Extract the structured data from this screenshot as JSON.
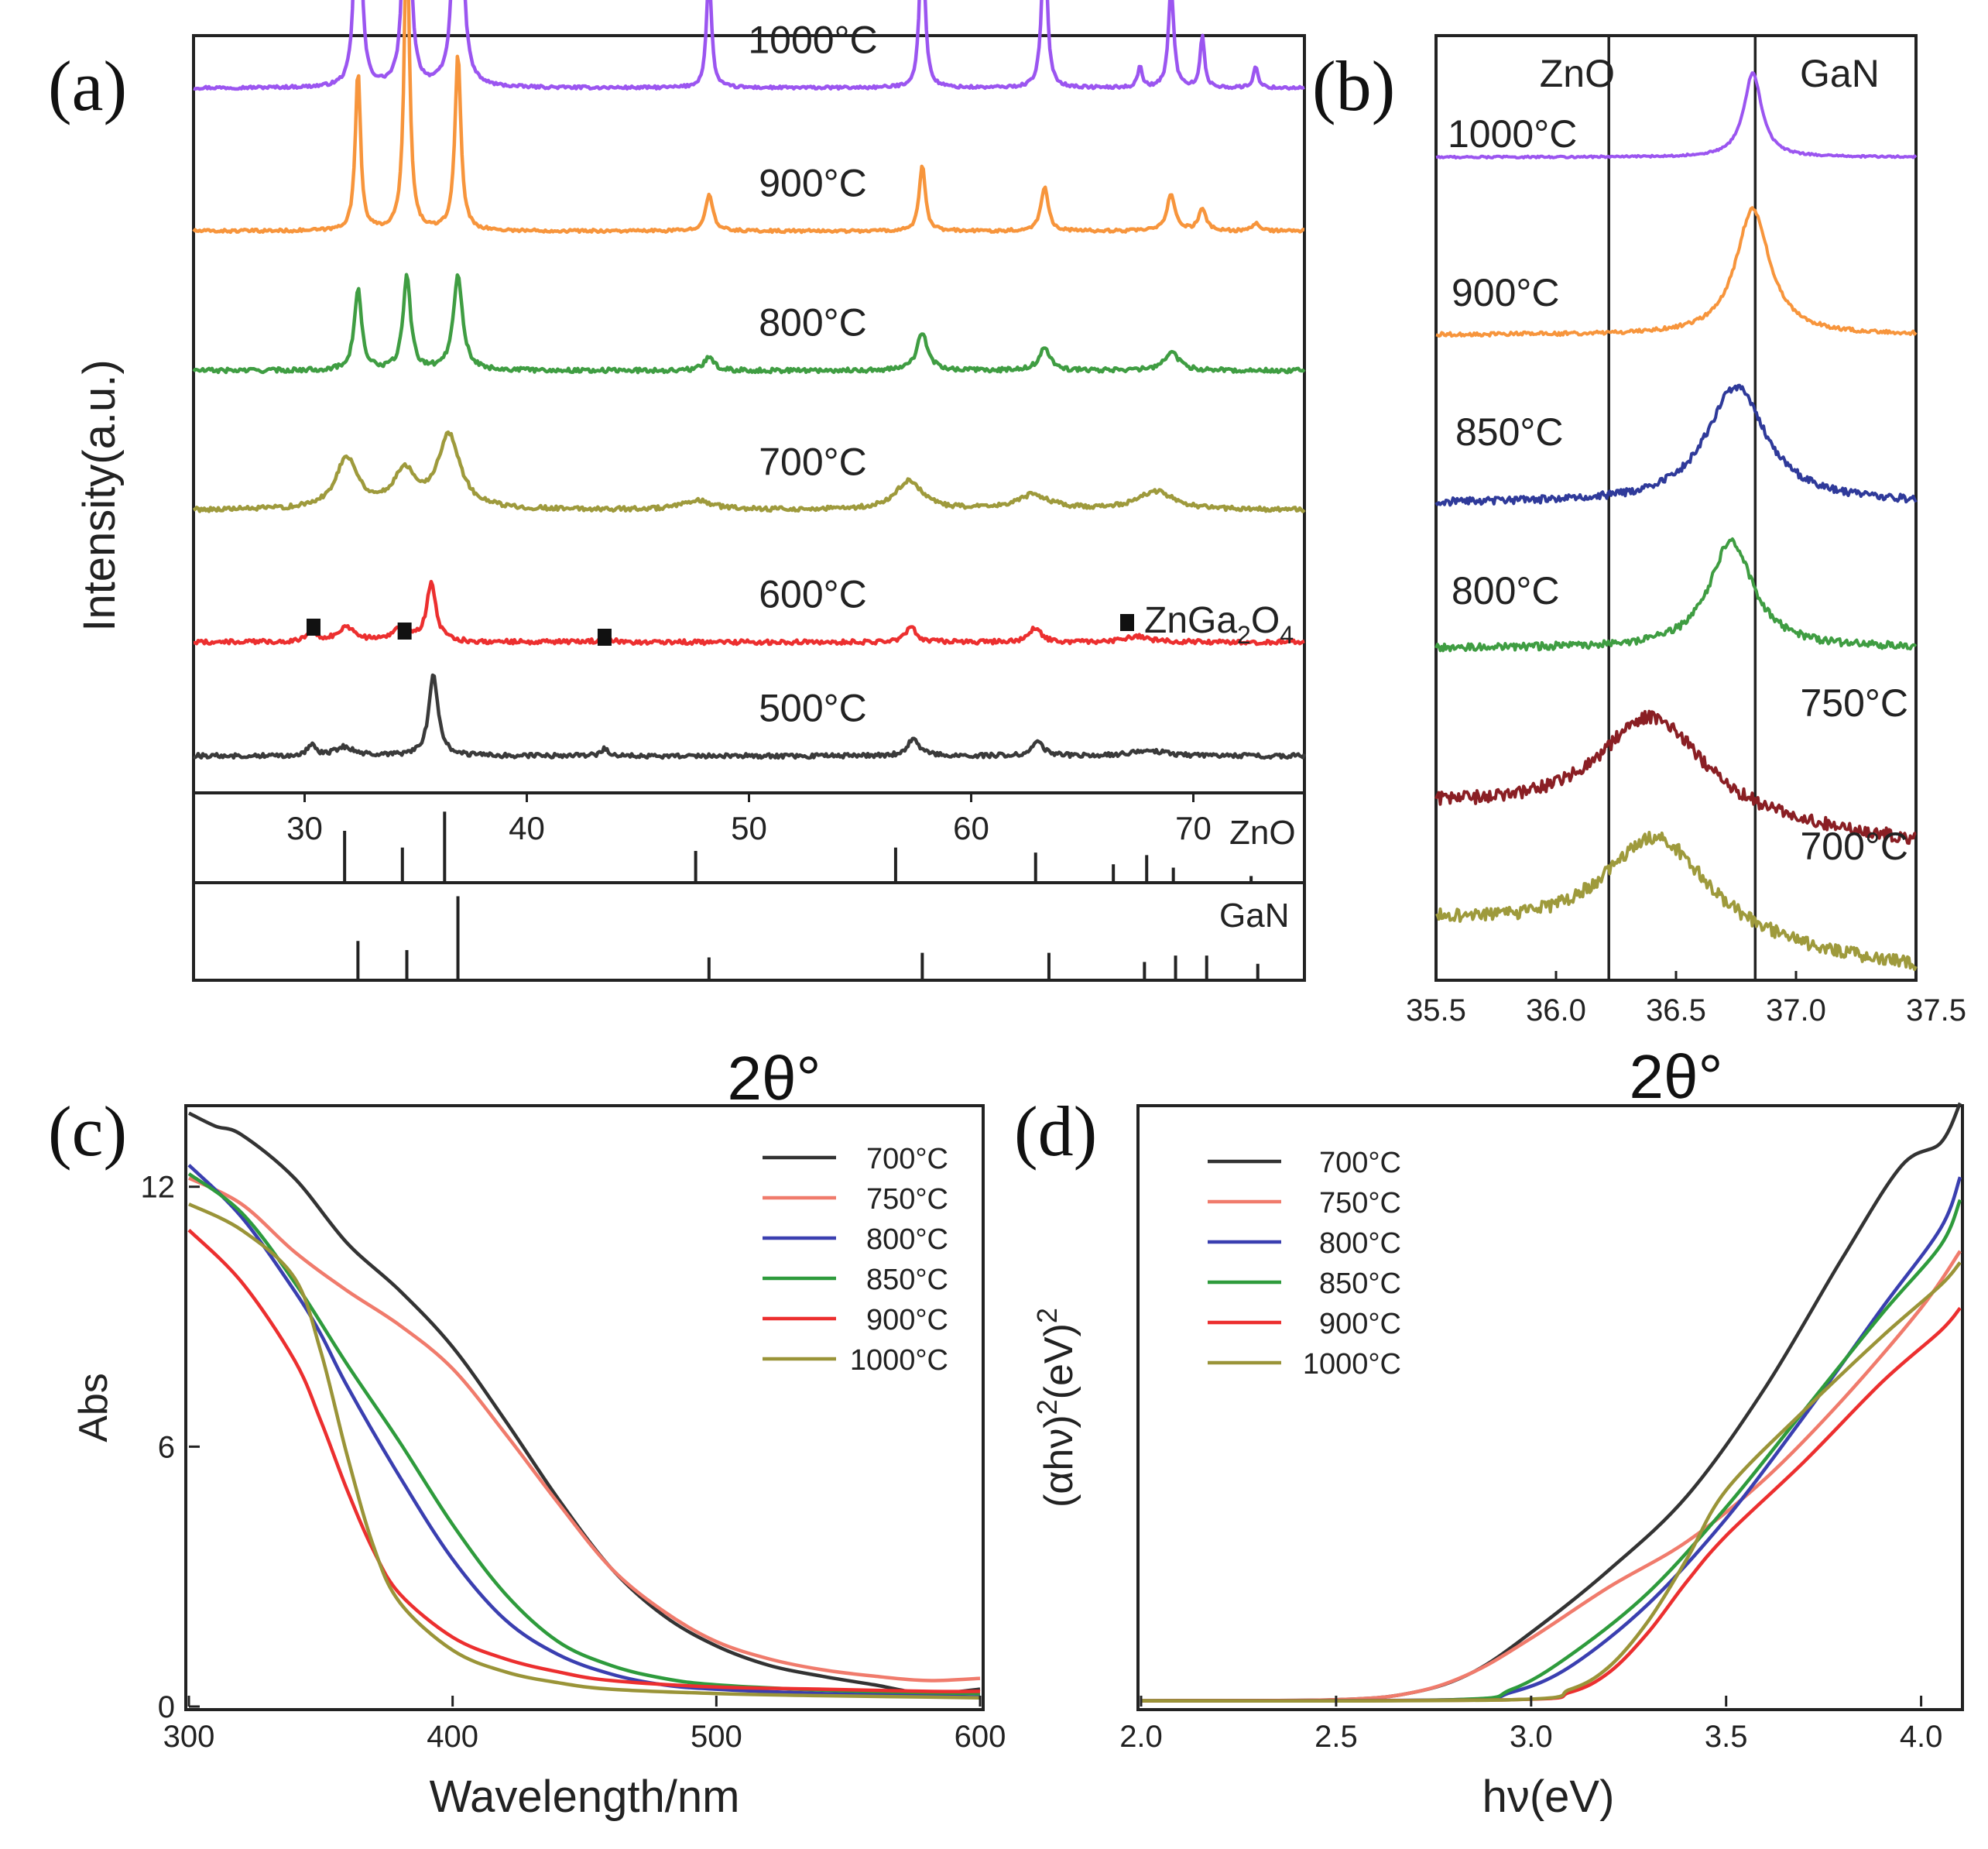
{
  "figure_labels": {
    "a": "(a)",
    "b": "(b)",
    "c": "(c)",
    "d": "(d)"
  },
  "chart_data": [
    {
      "id": "a",
      "type": "line",
      "title": "",
      "xlabel": "2θ°",
      "ylabel": "Intensity(a.u.)",
      "xlim": [
        25,
        75
      ],
      "x_ticks": [
        "30",
        "40",
        "50",
        "60",
        "70"
      ],
      "x_tick_values": [
        30,
        40,
        50,
        60,
        70
      ],
      "marker_legend": "ZnGa2O4",
      "marker_legend_parts": {
        "base": "ZnGa",
        "s1": "2",
        "mid": "O",
        "s2": "4"
      },
      "marker_positions": [
        30.4,
        34.5,
        43.5
      ],
      "series": [
        {
          "name": "1000°C",
          "color": "#9b55f0",
          "offset": 0.935,
          "gain": 1.0,
          "noise": 0.002,
          "peaks": [
            [
              32.4,
              0.55,
              0.12
            ],
            [
              34.6,
              0.68,
              0.12
            ],
            [
              36.9,
              1.0,
              0.12
            ],
            [
              48.2,
              0.16,
              0.13
            ],
            [
              57.8,
              0.24,
              0.13
            ],
            [
              63.3,
              0.22,
              0.14
            ],
            [
              67.6,
              0.03,
              0.12
            ],
            [
              69.0,
              0.14,
              0.14
            ],
            [
              70.4,
              0.07,
              0.12
            ],
            [
              72.8,
              0.03,
              0.12
            ]
          ]
        },
        {
          "name": "900°C",
          "color": "#f7953c",
          "offset": 0.74,
          "gain": 1.0,
          "noise": 0.002,
          "peaks": [
            [
              32.4,
              0.22,
              0.14
            ],
            [
              34.6,
              0.42,
              0.14
            ],
            [
              36.9,
              0.24,
              0.16
            ],
            [
              48.2,
              0.05,
              0.2
            ],
            [
              57.8,
              0.09,
              0.16
            ],
            [
              63.3,
              0.06,
              0.2
            ],
            [
              69.0,
              0.05,
              0.22
            ],
            [
              70.4,
              0.03,
              0.2
            ],
            [
              72.8,
              0.01,
              0.2
            ]
          ]
        },
        {
          "name": "800°C",
          "color": "#3f9d42",
          "offset": 0.55,
          "gain": 1.0,
          "noise": 0.003,
          "peaks": [
            [
              32.4,
              0.11,
              0.2
            ],
            [
              34.6,
              0.13,
              0.2
            ],
            [
              36.9,
              0.13,
              0.25
            ],
            [
              48.2,
              0.02,
              0.25
            ],
            [
              57.8,
              0.05,
              0.3
            ],
            [
              63.3,
              0.03,
              0.3
            ],
            [
              69.0,
              0.025,
              0.4
            ]
          ]
        },
        {
          "name": "700°C",
          "color": "#9e9a3c",
          "offset": 0.36,
          "gain": 1.0,
          "noise": 0.003,
          "peaks": [
            [
              31.9,
              0.07,
              0.6
            ],
            [
              34.5,
              0.05,
              0.6
            ],
            [
              36.5,
              0.1,
              0.6
            ],
            [
              47.7,
              0.012,
              0.8
            ],
            [
              57.2,
              0.04,
              0.7
            ],
            [
              62.8,
              0.02,
              0.9
            ],
            [
              68.3,
              0.025,
              1.0
            ]
          ]
        },
        {
          "name": "600°C",
          "color": "#ec2f2f",
          "offset": 0.18,
          "gain": 1.0,
          "noise": 0.003,
          "peaks": [
            [
              30.3,
              0.02,
              0.2
            ],
            [
              31.9,
              0.02,
              0.5
            ],
            [
              34.3,
              0.02,
              0.4
            ],
            [
              35.7,
              0.08,
              0.25
            ],
            [
              43.5,
              0.01,
              0.2
            ],
            [
              57.3,
              0.02,
              0.3
            ],
            [
              62.9,
              0.02,
              0.3
            ],
            [
              67.5,
              0.008,
              0.6
            ]
          ]
        },
        {
          "name": "500°C",
          "color": "#3a3a3a",
          "offset": 0.025,
          "gain": 1.0,
          "noise": 0.003,
          "peaks": [
            [
              30.3,
              0.015,
              0.2
            ],
            [
              31.8,
              0.012,
              0.5
            ],
            [
              35.8,
              0.11,
              0.25
            ],
            [
              43.5,
              0.01,
              0.2
            ],
            [
              57.4,
              0.025,
              0.3
            ],
            [
              63.0,
              0.02,
              0.3
            ],
            [
              68.0,
              0.008,
              0.8
            ]
          ]
        }
      ],
      "references": [
        {
          "name": "ZnO",
          "lines": [
            [
              31.8,
              0.62
            ],
            [
              34.4,
              0.42
            ],
            [
              36.3,
              0.85
            ],
            [
              47.6,
              0.38
            ],
            [
              56.6,
              0.42
            ],
            [
              62.9,
              0.36
            ],
            [
              66.4,
              0.22
            ],
            [
              67.9,
              0.33
            ],
            [
              69.1,
              0.18
            ],
            [
              72.6,
              0.08
            ]
          ]
        },
        {
          "name": "GaN",
          "lines": [
            [
              32.4,
              0.43
            ],
            [
              34.6,
              0.33
            ],
            [
              36.9,
              0.92
            ],
            [
              48.2,
              0.25
            ],
            [
              57.8,
              0.3
            ],
            [
              63.5,
              0.3
            ],
            [
              67.8,
              0.2
            ],
            [
              69.2,
              0.27
            ],
            [
              70.6,
              0.27
            ],
            [
              72.9,
              0.18
            ]
          ]
        }
      ]
    },
    {
      "id": "b",
      "type": "line",
      "title": "",
      "xlabel": "2θ°",
      "ylabel": "",
      "xlim": [
        35.5,
        37.5
      ],
      "x_ticks": [
        "35.5",
        "36.0",
        "36.5",
        "37.0",
        "37.5"
      ],
      "x_tick_values": [
        35.5,
        36.0,
        36.5,
        37.0,
        37.5
      ],
      "vertical_lines": [
        {
          "name": "ZnO",
          "x": 36.22
        },
        {
          "name": "GaN",
          "x": 36.83
        }
      ],
      "series": [
        {
          "name": "1000°C",
          "color": "#9b55f0",
          "base": 0.875,
          "center": 36.82,
          "width": 0.09,
          "amp": 0.09,
          "tail": 0.0,
          "noise": 0.001
        },
        {
          "name": "900°C",
          "color": "#f7953c",
          "base": 0.685,
          "center": 36.82,
          "width": 0.17,
          "amp": 0.135,
          "tail": 0.0,
          "noise": 0.002
        },
        {
          "name": "850°C",
          "color": "#2f3a9a",
          "base": 0.505,
          "center": 36.75,
          "width": 0.3,
          "amp": 0.125,
          "tail": 0.0,
          "noise": 0.004
        },
        {
          "name": "800°C",
          "color": "#3f9d42",
          "base": 0.35,
          "center": 36.73,
          "width": 0.22,
          "amp": 0.115,
          "tail": 0.0,
          "noise": 0.004
        },
        {
          "name": "750°C",
          "color": "#8a1f24",
          "base": 0.18,
          "center": 36.4,
          "width": 0.55,
          "amp": 0.115,
          "tail": -0.04,
          "noise": 0.007
        },
        {
          "name": "700°C",
          "color": "#9e9a3c",
          "base": 0.055,
          "center": 36.42,
          "width": 0.55,
          "amp": 0.115,
          "tail": -0.05,
          "noise": 0.007
        }
      ]
    },
    {
      "id": "c",
      "type": "line",
      "title": "",
      "xlabel": "Wavelength/nm",
      "ylabel": "Abs",
      "xlim": [
        300,
        600
      ],
      "ylim": [
        0,
        13.8
      ],
      "x_ticks": [
        "300",
        "400",
        "500",
        "600"
      ],
      "x_tick_values": [
        300,
        400,
        500,
        600
      ],
      "y_ticks": [
        "0",
        "6",
        "12"
      ],
      "y_tick_values": [
        0,
        6,
        12
      ],
      "series": [
        {
          "name": "700°C",
          "color": "#333333",
          "x": [
            300,
            310,
            320,
            340,
            360,
            380,
            400,
            420,
            440,
            460,
            480,
            500,
            520,
            540,
            560,
            580,
            600
          ],
          "y": [
            13.7,
            13.4,
            13.2,
            12.2,
            10.7,
            9.6,
            8.3,
            6.6,
            4.8,
            3.2,
            2.1,
            1.4,
            0.95,
            0.7,
            0.5,
            0.3,
            0.4
          ]
        },
        {
          "name": "750°C",
          "color": "#f07b6c",
          "x": [
            300,
            320,
            340,
            360,
            380,
            400,
            420,
            440,
            460,
            480,
            500,
            520,
            540,
            560,
            580,
            600
          ],
          "y": [
            12.2,
            11.6,
            10.5,
            9.6,
            8.8,
            7.8,
            6.3,
            4.7,
            3.2,
            2.2,
            1.5,
            1.1,
            0.85,
            0.7,
            0.6,
            0.65
          ]
        },
        {
          "name": "800°C",
          "color": "#3a3fb0",
          "x": [
            300,
            320,
            340,
            350,
            360,
            380,
            400,
            420,
            440,
            460,
            480,
            500,
            540,
            580,
            600
          ],
          "y": [
            12.5,
            11.3,
            9.6,
            8.6,
            7.4,
            5.3,
            3.4,
            2.0,
            1.2,
            0.75,
            0.5,
            0.4,
            0.3,
            0.25,
            0.22
          ]
        },
        {
          "name": "850°C",
          "color": "#2e9b3c",
          "x": [
            300,
            320,
            340,
            360,
            380,
            400,
            420,
            440,
            460,
            480,
            500,
            540,
            580,
            600
          ],
          "y": [
            12.3,
            11.4,
            9.8,
            7.9,
            6.1,
            4.2,
            2.6,
            1.5,
            0.95,
            0.65,
            0.5,
            0.38,
            0.32,
            0.3
          ]
        },
        {
          "name": "900°C",
          "color": "#ec2f2f",
          "x": [
            300,
            320,
            340,
            350,
            360,
            370,
            380,
            400,
            420,
            440,
            460,
            500,
            540,
            580,
            600
          ],
          "y": [
            11.0,
            9.8,
            8.0,
            6.6,
            5.0,
            3.6,
            2.6,
            1.6,
            1.1,
            0.8,
            0.6,
            0.45,
            0.4,
            0.35,
            0.35
          ]
        },
        {
          "name": "1000°C",
          "color": "#9a9438",
          "x": [
            300,
            320,
            340,
            350,
            360,
            370,
            380,
            400,
            420,
            440,
            460,
            500,
            540,
            580,
            600
          ],
          "y": [
            11.6,
            11.0,
            9.9,
            8.2,
            5.8,
            3.7,
            2.4,
            1.3,
            0.8,
            0.55,
            0.4,
            0.3,
            0.25,
            0.22,
            0.2
          ]
        }
      ]
    },
    {
      "id": "d",
      "type": "line",
      "title": "",
      "xlabel": "hν(eV)",
      "ylabel": "(αhν)²(eV)²",
      "ylabel_parts": {
        "a": "(αhν)",
        "s1": "2",
        "b": "(eV)",
        "s2": "2"
      },
      "xlim": [
        2.0,
        4.1
      ],
      "ylim": [
        0,
        10.5
      ],
      "x_ticks": [
        "2.0",
        "2.5",
        "3.0",
        "3.5",
        "4.0"
      ],
      "x_tick_values": [
        2.0,
        2.5,
        3.0,
        3.5,
        4.0
      ],
      "series": [
        {
          "name": "700°C",
          "color": "#333333",
          "x": [
            2.0,
            2.5,
            2.7,
            2.85,
            3.0,
            3.2,
            3.4,
            3.6,
            3.8,
            3.95,
            4.05,
            4.1
          ],
          "y": [
            0.1,
            0.12,
            0.25,
            0.6,
            1.3,
            2.4,
            3.7,
            5.6,
            7.9,
            9.5,
            9.9,
            10.6
          ]
        },
        {
          "name": "750°C",
          "color": "#f07b6c",
          "x": [
            2.0,
            2.5,
            2.7,
            2.85,
            3.0,
            3.2,
            3.4,
            3.6,
            3.8,
            4.0,
            4.1
          ],
          "y": [
            0.1,
            0.12,
            0.25,
            0.6,
            1.2,
            2.1,
            2.9,
            4.0,
            5.4,
            7.0,
            8.0
          ]
        },
        {
          "name": "800°C",
          "color": "#3a3fb0",
          "x": [
            2.0,
            2.8,
            2.95,
            3.1,
            3.3,
            3.5,
            3.7,
            3.9,
            4.05,
            4.1
          ],
          "y": [
            0.1,
            0.12,
            0.25,
            0.7,
            1.8,
            3.3,
            5.1,
            7.0,
            8.4,
            9.3
          ]
        },
        {
          "name": "850°C",
          "color": "#2e9b3c",
          "x": [
            2.0,
            2.8,
            2.95,
            3.1,
            3.3,
            3.5,
            3.7,
            3.9,
            4.05,
            4.1
          ],
          "y": [
            0.1,
            0.12,
            0.3,
            0.9,
            2.0,
            3.5,
            5.2,
            6.9,
            8.1,
            8.9
          ]
        },
        {
          "name": "900°C",
          "color": "#ec2f2f",
          "x": [
            2.0,
            2.95,
            3.1,
            3.2,
            3.3,
            3.4,
            3.5,
            3.7,
            3.9,
            4.05,
            4.1
          ],
          "y": [
            0.1,
            0.12,
            0.25,
            0.6,
            1.3,
            2.2,
            3.0,
            4.3,
            5.7,
            6.6,
            7.0
          ]
        },
        {
          "name": "1000°C",
          "color": "#9a9438",
          "x": [
            2.0,
            2.95,
            3.1,
            3.2,
            3.3,
            3.4,
            3.5,
            3.7,
            3.9,
            4.05,
            4.1
          ],
          "y": [
            0.1,
            0.12,
            0.3,
            0.7,
            1.5,
            2.6,
            3.8,
            5.2,
            6.5,
            7.4,
            7.8
          ]
        }
      ]
    }
  ]
}
